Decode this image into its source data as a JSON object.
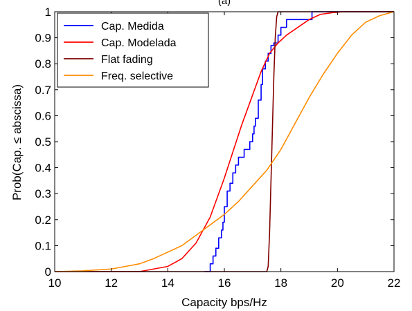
{
  "chart_data": {
    "type": "line",
    "title": "(a)",
    "xlabel": "Capacity bps/Hz",
    "ylabel": "Prob(Cap. ≤ abscissa)",
    "xlim": [
      10,
      22
    ],
    "ylim": [
      0,
      1
    ],
    "xticks": [
      10,
      12,
      14,
      16,
      18,
      20,
      22
    ],
    "yticks": [
      0,
      0.1,
      0.2,
      0.3,
      0.4,
      0.5,
      0.6,
      0.7,
      0.8,
      0.9,
      1
    ],
    "ytick_labels": [
      "0",
      "0.1",
      "0.2",
      "0.3",
      "0.4",
      "0.5",
      "0.6",
      "0.7",
      "0.8",
      "0.9",
      "1"
    ],
    "grid": false,
    "legend_position": "top-left",
    "series": [
      {
        "name": "Cap. Medida",
        "color": "#0000ff",
        "style": "step",
        "x": [
          15.3,
          15.5,
          15.6,
          15.7,
          15.8,
          15.9,
          15.95,
          16.0,
          16.1,
          16.2,
          16.3,
          16.4,
          16.5,
          16.7,
          16.9,
          17.0,
          17.05,
          17.1,
          17.2,
          17.3,
          17.35,
          17.45,
          17.55,
          17.65,
          17.75,
          17.9,
          18.0,
          18.2,
          18.6,
          19.1,
          19.3
        ],
        "y": [
          0.0,
          0.03,
          0.06,
          0.09,
          0.13,
          0.16,
          0.19,
          0.25,
          0.31,
          0.34,
          0.38,
          0.41,
          0.44,
          0.47,
          0.5,
          0.53,
          0.56,
          0.59,
          0.66,
          0.72,
          0.78,
          0.81,
          0.84,
          0.87,
          0.88,
          0.91,
          0.94,
          0.97,
          0.97,
          1.0,
          1.0
        ]
      },
      {
        "name": "Cap. Modelada",
        "color": "#ff0000",
        "style": "line",
        "x": [
          10.0,
          12.0,
          13.0,
          13.5,
          14.0,
          14.5,
          15.0,
          15.5,
          16.0,
          16.3,
          16.6,
          17.0,
          17.3,
          17.6,
          17.9,
          18.2,
          18.6,
          19.0,
          19.4,
          19.8,
          20.2,
          20.6,
          21.0,
          22.0
        ],
        "y": [
          0.0,
          0.0,
          0.0,
          0.01,
          0.02,
          0.05,
          0.11,
          0.21,
          0.36,
          0.46,
          0.56,
          0.68,
          0.77,
          0.84,
          0.88,
          0.91,
          0.94,
          0.97,
          0.99,
          0.996,
          1.0,
          1.0,
          1.0,
          1.0
        ]
      },
      {
        "name": "Flat fading",
        "color": "#800000",
        "style": "line",
        "x": [
          10.0,
          17.5,
          17.55,
          17.6,
          17.65,
          17.7,
          17.75,
          17.8,
          17.85,
          17.9,
          22.0
        ],
        "y": [
          0.0,
          0.0,
          0.02,
          0.15,
          0.35,
          0.55,
          0.75,
          0.9,
          0.98,
          1.0,
          1.0
        ]
      },
      {
        "name": "Freq. selective",
        "color": "#ff8c00",
        "style": "line",
        "x": [
          10.0,
          11.0,
          12.0,
          12.5,
          13.0,
          13.5,
          14.0,
          14.5,
          15.0,
          15.5,
          16.0,
          16.5,
          17.0,
          17.5,
          18.0,
          18.5,
          19.0,
          19.5,
          20.0,
          20.5,
          21.0,
          21.5,
          22.0
        ],
        "y": [
          0.0,
          0.003,
          0.01,
          0.02,
          0.03,
          0.05,
          0.075,
          0.1,
          0.14,
          0.18,
          0.22,
          0.27,
          0.33,
          0.39,
          0.47,
          0.57,
          0.67,
          0.76,
          0.84,
          0.91,
          0.96,
          0.985,
          1.0
        ]
      }
    ]
  }
}
